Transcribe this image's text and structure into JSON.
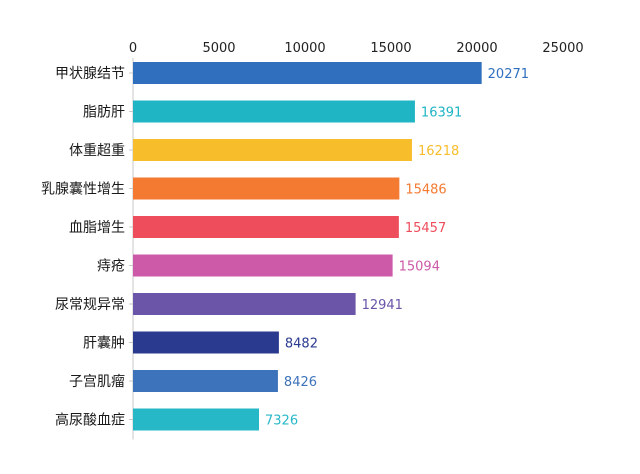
{
  "chart_data": {
    "type": "bar",
    "orientation": "horizontal",
    "x_axis_position": "top",
    "xlim": [
      0,
      25000
    ],
    "x_ticks": [
      0,
      5000,
      10000,
      15000,
      20000,
      25000
    ],
    "grid": false,
    "categories": [
      "甲状腺结节",
      "脂肪肝",
      "体重超重",
      "乳腺囊性增生",
      "血脂增生",
      "痔疮",
      "尿常规异常",
      "肝囊肿",
      "子宫肌瘤",
      "高尿酸血症"
    ],
    "values": [
      20271,
      16391,
      16218,
      15486,
      15457,
      15094,
      12941,
      8482,
      8426,
      7326
    ],
    "colors": [
      "#2f6fbd",
      "#1fb5c4",
      "#f8bd2b",
      "#f47a32",
      "#ee4d5c",
      "#cc5aa8",
      "#6a55a8",
      "#2a3a8f",
      "#3d73ba",
      "#27b8c8"
    ]
  }
}
